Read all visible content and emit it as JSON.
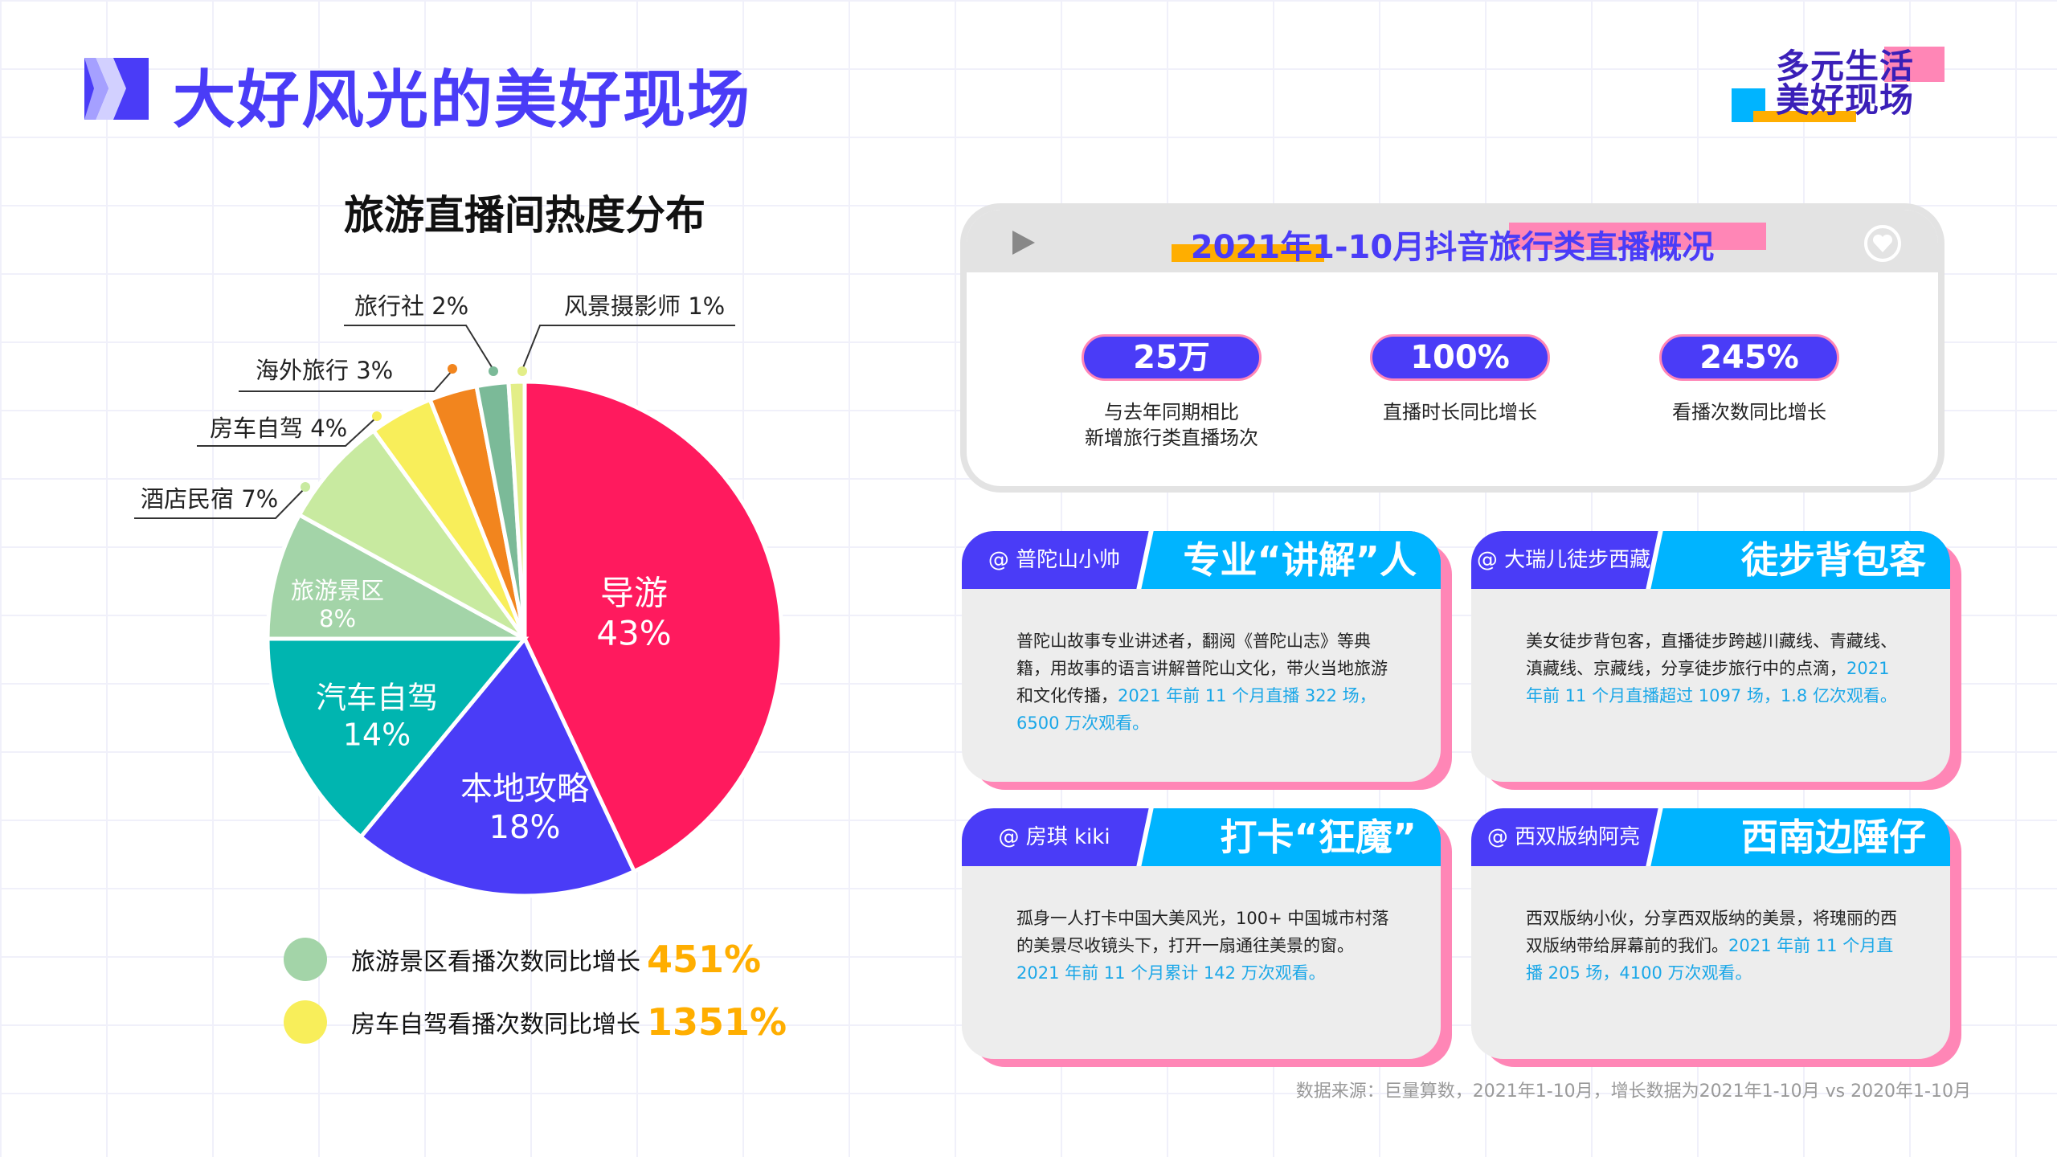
{
  "header": {
    "title": "大好风光的美好现场",
    "logo_line1": "多元生活",
    "logo_line2": "美好现场"
  },
  "chart_data": {
    "type": "pie",
    "title": "旅游直播间热度分布",
    "slices": [
      {
        "label": "导游",
        "value": 43,
        "color": "#FF1A5E"
      },
      {
        "label": "本地攻略",
        "value": 18,
        "color": "#4A3CF7"
      },
      {
        "label": "汽车自驾",
        "value": 14,
        "color": "#00B5B0"
      },
      {
        "label": "旅游景区",
        "value": 8,
        "color": "#A3D4A8"
      },
      {
        "label": "酒店民宿",
        "value": 7,
        "color": "#C8EAA0"
      },
      {
        "label": "房车自驾",
        "value": 4,
        "color": "#F8EE5A"
      },
      {
        "label": "海外旅行",
        "value": 3,
        "color": "#F2851E"
      },
      {
        "label": "旅行社",
        "value": 2,
        "color": "#7BBA98"
      },
      {
        "label": "风景摄影师",
        "value": 1,
        "color": "#E3EE88"
      }
    ],
    "data_labels": {
      "guide": "导游",
      "guide_pct": "43%",
      "local": "本地攻略",
      "local_pct": "18%",
      "car": "汽车自驾",
      "car_pct": "14%",
      "scenic": "旅游景区",
      "scenic_pct": "8%",
      "hotel": "酒店民宿 7%",
      "rv": "房车自驾 4%",
      "overseas": "海外旅行 3%",
      "agency": "旅行社 2%",
      "photo": "风景摄影师 1%"
    }
  },
  "legend": [
    {
      "text": "旅游景区看播次数同比增长",
      "value": "451%",
      "color": "#A3D4A8"
    },
    {
      "text": "房车自驾看播次数同比增长",
      "value": "1351%",
      "color": "#F8EE5A"
    }
  ],
  "overview": {
    "title": "2021年1-10月抖音旅行类直播概况",
    "stats": [
      {
        "value": "25万",
        "label1": "与去年同期相比",
        "label2": "新增旅行类直播场次"
      },
      {
        "value": "100%",
        "label1": "直播时长同比增长",
        "label2": ""
      },
      {
        "value": "245%",
        "label1": "看播次数同比增长",
        "label2": ""
      }
    ]
  },
  "cards": [
    {
      "name": "@ 普陀山小帅",
      "title": "专业“讲解”人",
      "text": "普陀山故事专业讲述者，翻阅《普陀山志》等典籍，用故事的语言讲解普陀山文化，带火当地旅游和文化传播，",
      "highlight": "2021 年前 11 个月直播 322 场，6500 万次观看。"
    },
    {
      "name": "@ 大瑞儿徒步西藏",
      "title": "徒步背包客",
      "text": "美女徒步背包客，直播徒步跨越川藏线、青藏线、滇藏线、京藏线，分享徒步旅行中的点滴，",
      "highlight": "2021 年前 11 个月直播超过 1097 场，1.8 亿次观看。"
    },
    {
      "name": "@ 房琪 kiki",
      "title": "打卡“狂魔”",
      "text": "孤身一人打卡中国大美风光，100+ 中国城市村落的美景尽收镜头下，打开一扇通往美景的窗。",
      "highlight": "2021 年前 11 个月累计 142 万次观看。"
    },
    {
      "name": "@ 西双版纳阿亮",
      "title": "西南边陲仔",
      "text": "西双版纳小伙，分享西双版纳的美景，将瑰丽的西双版纳带给屏幕前的我们。",
      "highlight": "2021 年前 11 个月直播 205 场，4100 万次观看。"
    }
  ],
  "footer": "数据来源：巨量算数，2021年1-10月，增长数据为2021年1-10月 vs 2020年1-10月"
}
